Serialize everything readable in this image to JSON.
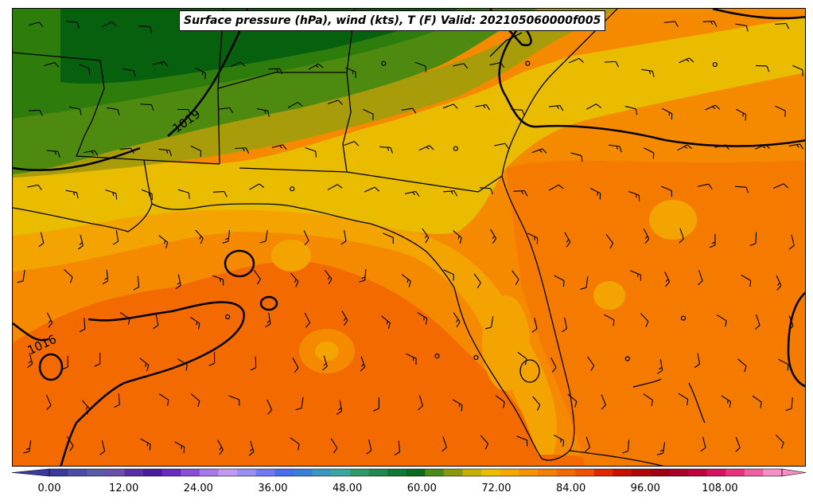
{
  "title": "Surface pressure (hPa), wind (kts), T (F) Valid: 202105060000f005",
  "isobar_labels": [
    "1019",
    "1016"
  ],
  "colorbar": {
    "ticks": [
      "0.00",
      "12.00",
      "24.00",
      "36.00",
      "48.00",
      "60.00",
      "72.00",
      "84.00",
      "96.00",
      "108.00"
    ],
    "colors": [
      "#3a3a9e",
      "#4b4ba8",
      "#5a5aa5",
      "#6b4fa8",
      "#5a2ea6",
      "#4a1aa0",
      "#6a2cc0",
      "#8a4ed8",
      "#a57ae8",
      "#c29af0",
      "#9a8ef5",
      "#7078f5",
      "#4a6cf0",
      "#3a80d8",
      "#3a98c0",
      "#3aa8a0",
      "#2e9a6e",
      "#1f8a4e",
      "#0f7a36",
      "#0a6a20",
      "#4a8a1a",
      "#8a9a10",
      "#c8b000",
      "#e8c000",
      "#f4a800",
      "#f49400",
      "#f48000",
      "#f46a00",
      "#f05000",
      "#e02800",
      "#c81000",
      "#b00808",
      "#a00010",
      "#a80028",
      "#c00040",
      "#d81060",
      "#e83080",
      "#f060a0",
      "#f890c8"
    ],
    "colorbar_min": 0,
    "colorbar_max": 118
  },
  "temperature_colors": {
    "dark_green": "#07600e",
    "green": "#2e7d0c",
    "olive_green": "#4f8a10",
    "olive": "#a89c0a",
    "yellow": "#e9bc00",
    "orange_yellow": "#f3a400",
    "orange": "#f58a00",
    "dark_orange": "#f26a00"
  }
}
